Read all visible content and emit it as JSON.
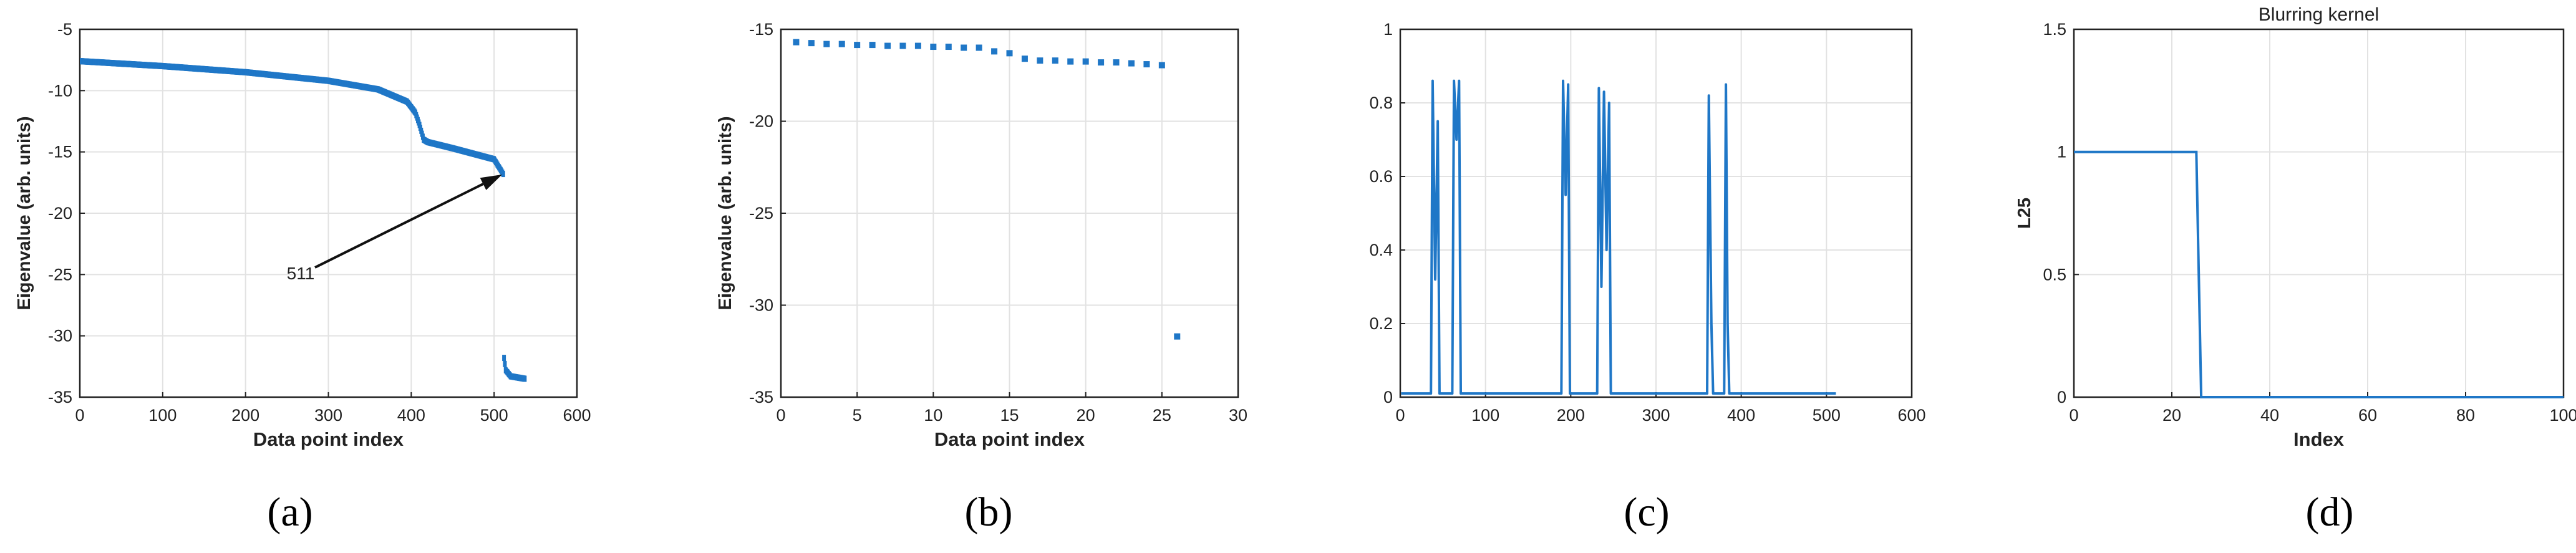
{
  "figure": {
    "panels": [
      {
        "id": "a",
        "caption": "(a)"
      },
      {
        "id": "b",
        "caption": "(b)"
      },
      {
        "id": "c",
        "caption": "(c)"
      },
      {
        "id": "d",
        "caption": "(d)"
      }
    ]
  },
  "chart_data": [
    {
      "panel": "a",
      "type": "scatter",
      "title": "",
      "xlabel": "Data point index",
      "ylabel": "Eigenvalue (arb. units)",
      "xlim": [
        0,
        600
      ],
      "ylim": [
        -35,
        -5
      ],
      "xticks": [
        0,
        100,
        200,
        300,
        400,
        500,
        600
      ],
      "yticks": [
        -5,
        -10,
        -15,
        -20,
        -25,
        -30,
        -35
      ],
      "grid": true,
      "color": "#1f77c7",
      "annotation": {
        "text": "511",
        "x_data": 511,
        "y_data": -16.8
      },
      "series": [
        {
          "segment": "main",
          "x_range": [
            1,
            511
          ],
          "y_keypoints": [
            [
              1,
              -7.6
            ],
            [
              100,
              -8.0
            ],
            [
              200,
              -8.5
            ],
            [
              300,
              -9.2
            ],
            [
              360,
              -9.9
            ],
            [
              395,
              -10.9
            ],
            [
              405,
              -11.8
            ],
            [
              410,
              -12.8
            ],
            [
              415,
              -14.0
            ],
            [
              420,
              -14.2
            ],
            [
              450,
              -14.7
            ],
            [
              500,
              -15.6
            ],
            [
              511,
              -16.8
            ]
          ]
        },
        {
          "segment": "tail",
          "x_range": [
            512,
            537
          ],
          "y_keypoints": [
            [
              512,
              -31.8
            ],
            [
              514,
              -32.8
            ],
            [
              520,
              -33.3
            ],
            [
              537,
              -33.5
            ]
          ]
        }
      ]
    },
    {
      "panel": "b",
      "type": "scatter",
      "title": "",
      "xlabel": "Data point index",
      "ylabel": "Eigenvalue (arb. units)",
      "xlim": [
        0,
        30
      ],
      "ylim": [
        -35,
        -15
      ],
      "xticks": [
        0,
        5,
        10,
        15,
        20,
        25,
        30
      ],
      "yticks": [
        -15,
        -20,
        -25,
        -30,
        -35
      ],
      "grid": true,
      "color": "#1f77c7",
      "x": [
        1,
        2,
        3,
        4,
        5,
        6,
        7,
        8,
        9,
        10,
        11,
        12,
        13,
        14,
        15,
        16,
        17,
        18,
        19,
        20,
        21,
        22,
        23,
        24,
        25,
        26
      ],
      "y": [
        -15.7,
        -15.75,
        -15.8,
        -15.8,
        -15.85,
        -15.85,
        -15.9,
        -15.9,
        -15.9,
        -15.95,
        -15.95,
        -16.0,
        -16.0,
        -16.2,
        -16.3,
        -16.6,
        -16.7,
        -16.7,
        -16.75,
        -16.75,
        -16.8,
        -16.8,
        -16.85,
        -16.9,
        -16.95,
        -31.7
      ]
    },
    {
      "panel": "c",
      "type": "line",
      "title": "",
      "xlabel": "",
      "ylabel": "",
      "xlim": [
        0,
        600
      ],
      "ylim": [
        0,
        1
      ],
      "xticks": [
        0,
        100,
        200,
        300,
        400,
        500,
        600
      ],
      "yticks": [
        0,
        0.2,
        0.4,
        0.6,
        0.8,
        1
      ],
      "grid": true,
      "color": "#1f77c7",
      "x_range": [
        1,
        511
      ],
      "baseline": 0.01,
      "peaks": [
        {
          "x": [
            38,
            41,
            44
          ],
          "y": [
            0.86,
            0.32,
            0.75
          ]
        },
        {
          "x": [
            63,
            66,
            69
          ],
          "y": [
            0.86,
            0.7,
            0.86
          ]
        },
        {
          "x": [
            191,
            194,
            197
          ],
          "y": [
            0.86,
            0.55,
            0.85
          ]
        },
        {
          "x": [
            233,
            236,
            239,
            242,
            245
          ],
          "y": [
            0.84,
            0.3,
            0.83,
            0.4,
            0.8
          ]
        },
        {
          "x": [
            362,
            365
          ],
          "y": [
            0.82,
            0.2
          ]
        },
        {
          "x": [
            382,
            384
          ],
          "y": [
            0.85,
            0.2
          ]
        }
      ]
    },
    {
      "panel": "d",
      "type": "line",
      "title": "Blurring kernel",
      "xlabel": "Index",
      "ylabel": "L25",
      "xlim": [
        0,
        100
      ],
      "ylim": [
        0,
        1.5
      ],
      "xticks": [
        0,
        20,
        40,
        60,
        80,
        100
      ],
      "yticks": [
        0,
        0.5,
        1,
        1.5
      ],
      "grid": true,
      "color": "#1f77c7",
      "x": [
        0,
        25,
        26,
        100
      ],
      "y": [
        1,
        1,
        0,
        0
      ]
    }
  ]
}
